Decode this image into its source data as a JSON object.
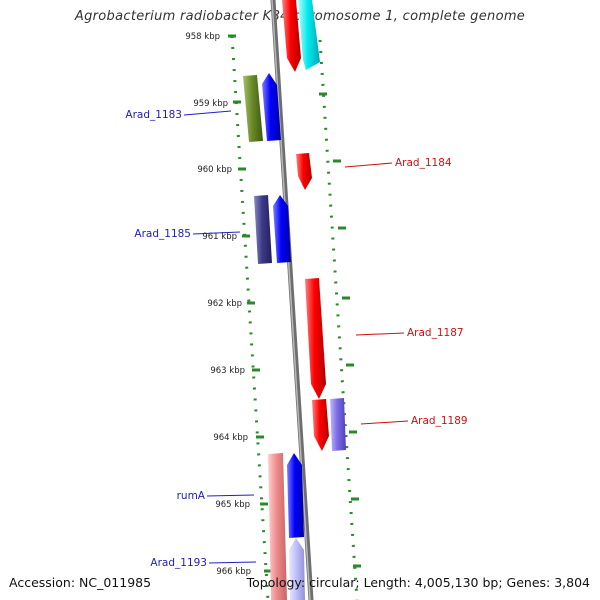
{
  "title": "Agrobacterium radiobacter K84 chromosome 1, complete genome",
  "accession": "Accession: NC_011985",
  "summary": "Topology: circular; Length: 4,005,130 bp; Genes: 3,804",
  "colors": {
    "backbone": "#808080",
    "tick": "#2a8a2a",
    "label_forward": "#2020c0",
    "label_reverse": "#cc1010"
  },
  "scale_ticks": [
    "958 kbp",
    "959 kbp",
    "960 kbp",
    "961 kbp",
    "962 kbp",
    "963 kbp",
    "964 kbp",
    "965 kbp",
    "966 kbp"
  ],
  "gene_labels": [
    {
      "text": "Arad_1183",
      "strand": "forward"
    },
    {
      "text": "Arad_1184",
      "strand": "reverse"
    },
    {
      "text": "Arad_1185",
      "strand": "forward"
    },
    {
      "text": "Arad_1187",
      "strand": "reverse"
    },
    {
      "text": "Arad_1189",
      "strand": "reverse"
    },
    {
      "text": "rumA",
      "strand": "forward"
    },
    {
      "text": "Arad_1193",
      "strand": "forward"
    }
  ]
}
